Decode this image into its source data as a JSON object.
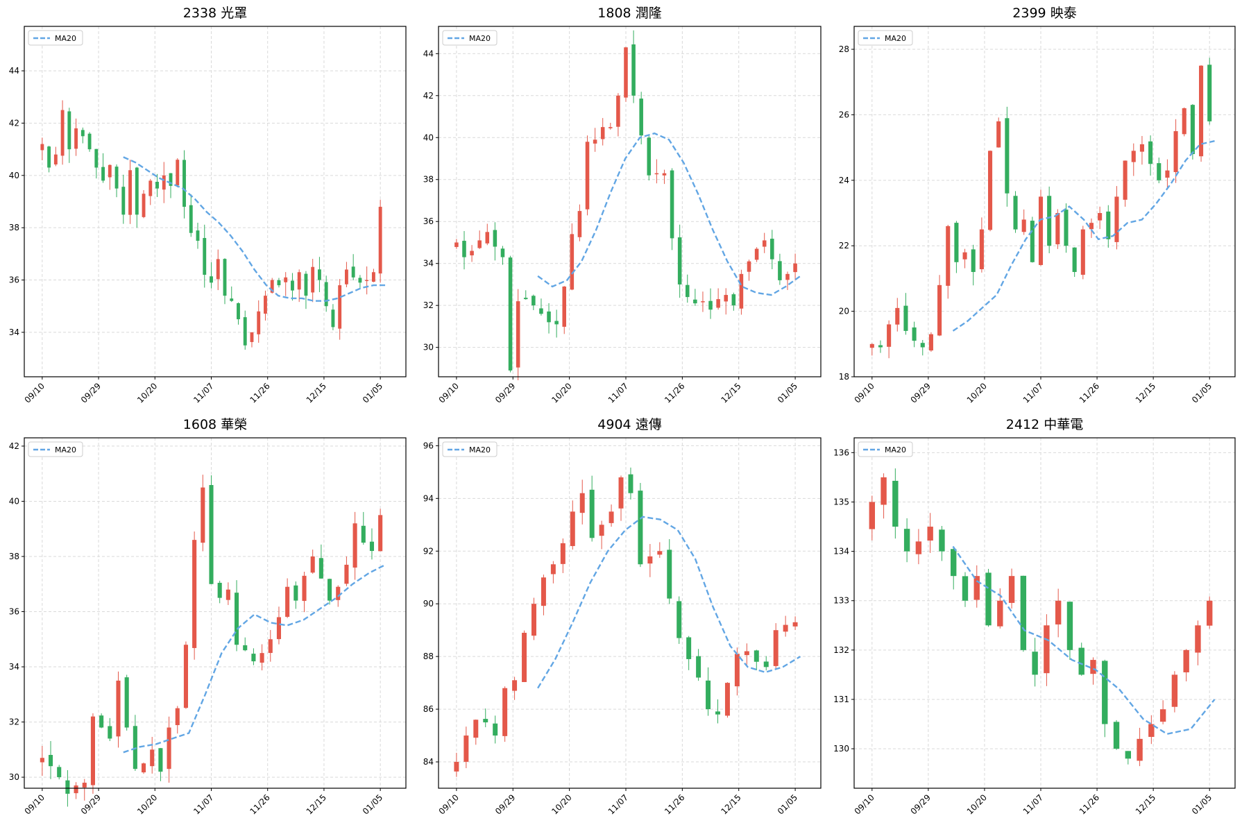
{
  "colors": {
    "up": "#e4584a",
    "down": "#33ad5e",
    "ma": "#62a6e4"
  },
  "chart_data": [
    {
      "type": "candlestick",
      "title": "2338 光罩",
      "legend": [
        "MA20"
      ],
      "legend_position": "top-left",
      "grid": true,
      "xticks": [
        "09/10",
        "09/29",
        "10/20",
        "11/07",
        "11/26",
        "12/15",
        "01/05"
      ],
      "ylim": [
        32.3,
        45.7
      ],
      "yticks": [
        34,
        36,
        38,
        40,
        42,
        44
      ],
      "series": [
        {
          "name": "price",
          "values": [
            41.2,
            40.3,
            40.8,
            42.5,
            41.0,
            41.8,
            41.5,
            41.0,
            40.3,
            39.8,
            40.4,
            39.5,
            38.5,
            40.2,
            38.5,
            39.3,
            39.8,
            39.5,
            40.0,
            39.6,
            40.6,
            38.8,
            37.8,
            37.5,
            36.2,
            35.9,
            36.8,
            35.4,
            35.2,
            34.5,
            33.5,
            34.0,
            34.8,
            35.4,
            36.0,
            35.8,
            36.1,
            35.6,
            36.3,
            35.4,
            36.5,
            36.0,
            35.0,
            34.2,
            35.8,
            36.4,
            36.1,
            35.9,
            36.0,
            36.3,
            38.8
          ]
        },
        {
          "name": "MA20",
          "values": [
            40.7,
            40.5,
            40.2,
            39.9,
            39.7,
            39.5,
            39.1,
            38.6,
            38.2,
            37.7,
            37.1,
            36.4,
            35.8,
            35.4,
            35.3,
            35.3,
            35.2,
            35.2,
            35.3,
            35.5,
            35.7,
            35.8,
            35.8
          ]
        }
      ]
    },
    {
      "type": "candlestick",
      "title": "1808 潤隆",
      "legend": [
        "MA20"
      ],
      "legend_position": "top-left",
      "grid": true,
      "xticks": [
        "09/10",
        "09/29",
        "10/20",
        "11/07",
        "11/26",
        "12/15",
        "01/05"
      ],
      "ylim": [
        28.6,
        45.3
      ],
      "yticks": [
        30,
        32,
        34,
        36,
        38,
        40,
        42,
        44
      ],
      "series": [
        {
          "name": "price",
          "values": [
            35.0,
            34.3,
            34.6,
            35.1,
            35.5,
            34.8,
            34.3,
            28.9,
            32.2,
            32.3,
            32.0,
            31.6,
            31.2,
            31.1,
            32.9,
            35.4,
            36.5,
            39.8,
            39.9,
            40.5,
            40.5,
            42.0,
            44.3,
            42.0,
            40.1,
            38.2,
            38.3,
            38.3,
            35.2,
            33.0,
            32.4,
            32.1,
            32.2,
            31.8,
            32.3,
            32.5,
            32.0,
            33.5,
            34.1,
            34.7,
            35.1,
            34.2,
            33.2,
            33.5,
            34.0
          ]
        },
        {
          "name": "MA20",
          "values": [
            33.4,
            32.9,
            33.2,
            34.1,
            35.6,
            37.4,
            39.0,
            40.0,
            40.2,
            39.9,
            38.8,
            37.3,
            35.6,
            34.1,
            32.9,
            32.6,
            32.5,
            32.9,
            33.4
          ]
        }
      ]
    },
    {
      "type": "candlestick",
      "title": "2399 映泰",
      "legend": [
        "MA20"
      ],
      "legend_position": "top-left",
      "grid": true,
      "xticks": [
        "09/10",
        "09/29",
        "10/20",
        "11/07",
        "11/26",
        "12/15",
        "01/05"
      ],
      "ylim": [
        18,
        28.7
      ],
      "yticks": [
        18,
        20,
        22,
        24,
        26,
        28
      ],
      "series": [
        {
          "name": "price",
          "values": [
            19.0,
            18.9,
            19.6,
            20.1,
            19.4,
            19.1,
            18.9,
            19.3,
            20.8,
            22.6,
            21.5,
            21.8,
            21.2,
            22.5,
            24.9,
            25.8,
            23.6,
            22.5,
            22.8,
            21.5,
            23.5,
            22.0,
            23.0,
            22.0,
            21.2,
            22.5,
            22.7,
            23.0,
            22.2,
            23.5,
            24.6,
            24.9,
            25.1,
            24.5,
            24.0,
            24.3,
            25.5,
            26.2,
            24.8,
            27.5,
            25.8
          ]
        },
        {
          "name": "MA20",
          "values": [
            19.4,
            19.7,
            20.1,
            20.5,
            21.4,
            22.2,
            22.8,
            22.9,
            23.2,
            22.8,
            22.2,
            22.3,
            22.7,
            22.8,
            23.3,
            23.9,
            24.6,
            25.1,
            25.2
          ]
        }
      ]
    },
    {
      "type": "candlestick",
      "title": "1608 華榮",
      "legend": [
        "MA20"
      ],
      "legend_position": "top-left",
      "grid": true,
      "xticks": [
        "09/10",
        "09/29",
        "10/20",
        "11/07",
        "11/26",
        "12/15",
        "01/05"
      ],
      "ylim": [
        29.6,
        42.3
      ],
      "yticks": [
        30,
        32,
        34,
        36,
        38,
        40,
        42
      ],
      "series": [
        {
          "name": "price",
          "values": [
            30.7,
            30.4,
            30.0,
            29.4,
            29.7,
            29.8,
            32.2,
            31.8,
            31.4,
            33.5,
            31.8,
            30.3,
            30.5,
            31.0,
            30.2,
            31.8,
            32.5,
            34.8,
            38.6,
            40.5,
            37.0,
            36.5,
            36.8,
            34.8,
            34.6,
            34.2,
            34.5,
            35.0,
            35.8,
            36.9,
            36.4,
            37.3,
            38.0,
            37.2,
            36.4,
            36.9,
            37.7,
            39.2,
            38.5,
            38.2,
            39.5
          ]
        },
        {
          "name": "MA20",
          "values": [
            30.9,
            31.1,
            31.2,
            31.4,
            31.6,
            33.0,
            34.5,
            35.4,
            35.9,
            35.6,
            35.5,
            35.7,
            36.1,
            36.5,
            37.0,
            37.4,
            37.7
          ]
        }
      ]
    },
    {
      "type": "candlestick",
      "title": "4904 遠傳",
      "legend": [
        "MA20"
      ],
      "legend_position": "top-left",
      "grid": true,
      "xticks": [
        "09/10",
        "09/29",
        "10/20",
        "11/07",
        "11/26",
        "12/15",
        "01/05"
      ],
      "ylim": [
        83,
        96.3
      ],
      "yticks": [
        84,
        86,
        88,
        90,
        92,
        94,
        96
      ],
      "series": [
        {
          "name": "price",
          "values": [
            84.0,
            85.0,
            85.6,
            85.5,
            85.0,
            86.8,
            87.1,
            88.9,
            90.0,
            91.0,
            91.5,
            92.3,
            93.5,
            94.2,
            92.5,
            93.0,
            93.5,
            94.8,
            94.2,
            91.5,
            91.8,
            92.0,
            90.2,
            88.7,
            87.9,
            87.2,
            86.0,
            85.8,
            87.0,
            88.1,
            88.2,
            87.8,
            87.6,
            89.0,
            89.2,
            89.3
          ]
        },
        {
          "name": "MA20",
          "values": [
            86.8,
            87.9,
            89.3,
            90.8,
            92.0,
            92.8,
            93.3,
            93.2,
            92.8,
            91.7,
            89.9,
            88.4,
            87.6,
            87.4,
            87.6,
            88.0
          ]
        }
      ]
    },
    {
      "type": "candlestick",
      "title": "2412 中華電",
      "legend": [
        "MA20"
      ],
      "legend_position": "top-left",
      "grid": true,
      "xticks": [
        "09/10",
        "09/29",
        "10/20",
        "11/07",
        "11/26",
        "12/15",
        "01/05"
      ],
      "ylim": [
        129.2,
        136.3
      ],
      "yticks": [
        130,
        131,
        132,
        133,
        134,
        135,
        136
      ],
      "series": [
        {
          "name": "price",
          "values": [
            135.0,
            135.5,
            134.5,
            134.0,
            134.2,
            134.5,
            134.0,
            133.5,
            133.0,
            133.5,
            132.5,
            133.0,
            133.5,
            132.0,
            131.5,
            132.5,
            133.0,
            132.0,
            131.5,
            131.8,
            130.5,
            130.0,
            129.8,
            130.2,
            130.5,
            130.8,
            131.5,
            132.0,
            132.5,
            133.0
          ]
        },
        {
          "name": "MA20",
          "values": [
            134.1,
            133.4,
            133.1,
            132.4,
            132.2,
            131.8,
            131.6,
            131.2,
            130.6,
            130.3,
            130.4,
            131.0
          ]
        }
      ]
    }
  ]
}
